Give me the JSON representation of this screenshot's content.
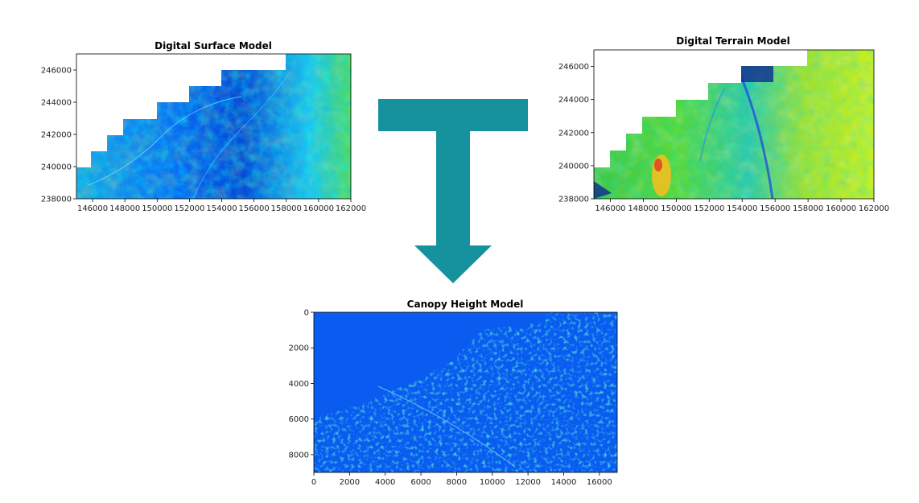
{
  "colors": {
    "arrow": "#16929e",
    "background": "#ffffff"
  },
  "arrow": {
    "shape": "T-shaped downward arrow"
  },
  "chart_data": [
    {
      "type": "heatmap",
      "title": "Digital Surface Model",
      "xlabel": "",
      "ylabel": "",
      "xlim": [
        145000,
        162000
      ],
      "ylim": [
        238000,
        247000
      ],
      "x_ticks": [
        "146000",
        "148000",
        "150000",
        "152000",
        "154000",
        "156000",
        "158000",
        "160000",
        "162000"
      ],
      "y_ticks": [
        "238000",
        "240000",
        "242000",
        "244000",
        "246000"
      ],
      "grid": false,
      "colormap": "jet",
      "dominant_colors": [
        "blue",
        "cyan",
        "green"
      ]
    },
    {
      "type": "heatmap",
      "title": "Digital Terrain Model",
      "xlabel": "",
      "ylabel": "",
      "xlim": [
        145000,
        162000
      ],
      "ylim": [
        238000,
        247000
      ],
      "x_ticks": [
        "146000",
        "148000",
        "150000",
        "152000",
        "154000",
        "156000",
        "158000",
        "160000",
        "162000"
      ],
      "y_ticks": [
        "238000",
        "240000",
        "242000",
        "244000",
        "246000"
      ],
      "grid": false,
      "colormap": "jet",
      "dominant_colors": [
        "green",
        "cyan",
        "yellow",
        "red"
      ]
    },
    {
      "type": "heatmap",
      "title": "Canopy Height Model",
      "xlabel": "",
      "ylabel": "",
      "xlim": [
        0,
        17000
      ],
      "ylim": [
        9000,
        0
      ],
      "x_ticks": [
        "0",
        "2000",
        "4000",
        "6000",
        "8000",
        "10000",
        "12000",
        "14000",
        "16000"
      ],
      "y_ticks": [
        "0",
        "2000",
        "4000",
        "6000",
        "8000"
      ],
      "grid": false,
      "colormap": "jet",
      "dominant_colors": [
        "blue",
        "cyan",
        "green"
      ]
    }
  ]
}
